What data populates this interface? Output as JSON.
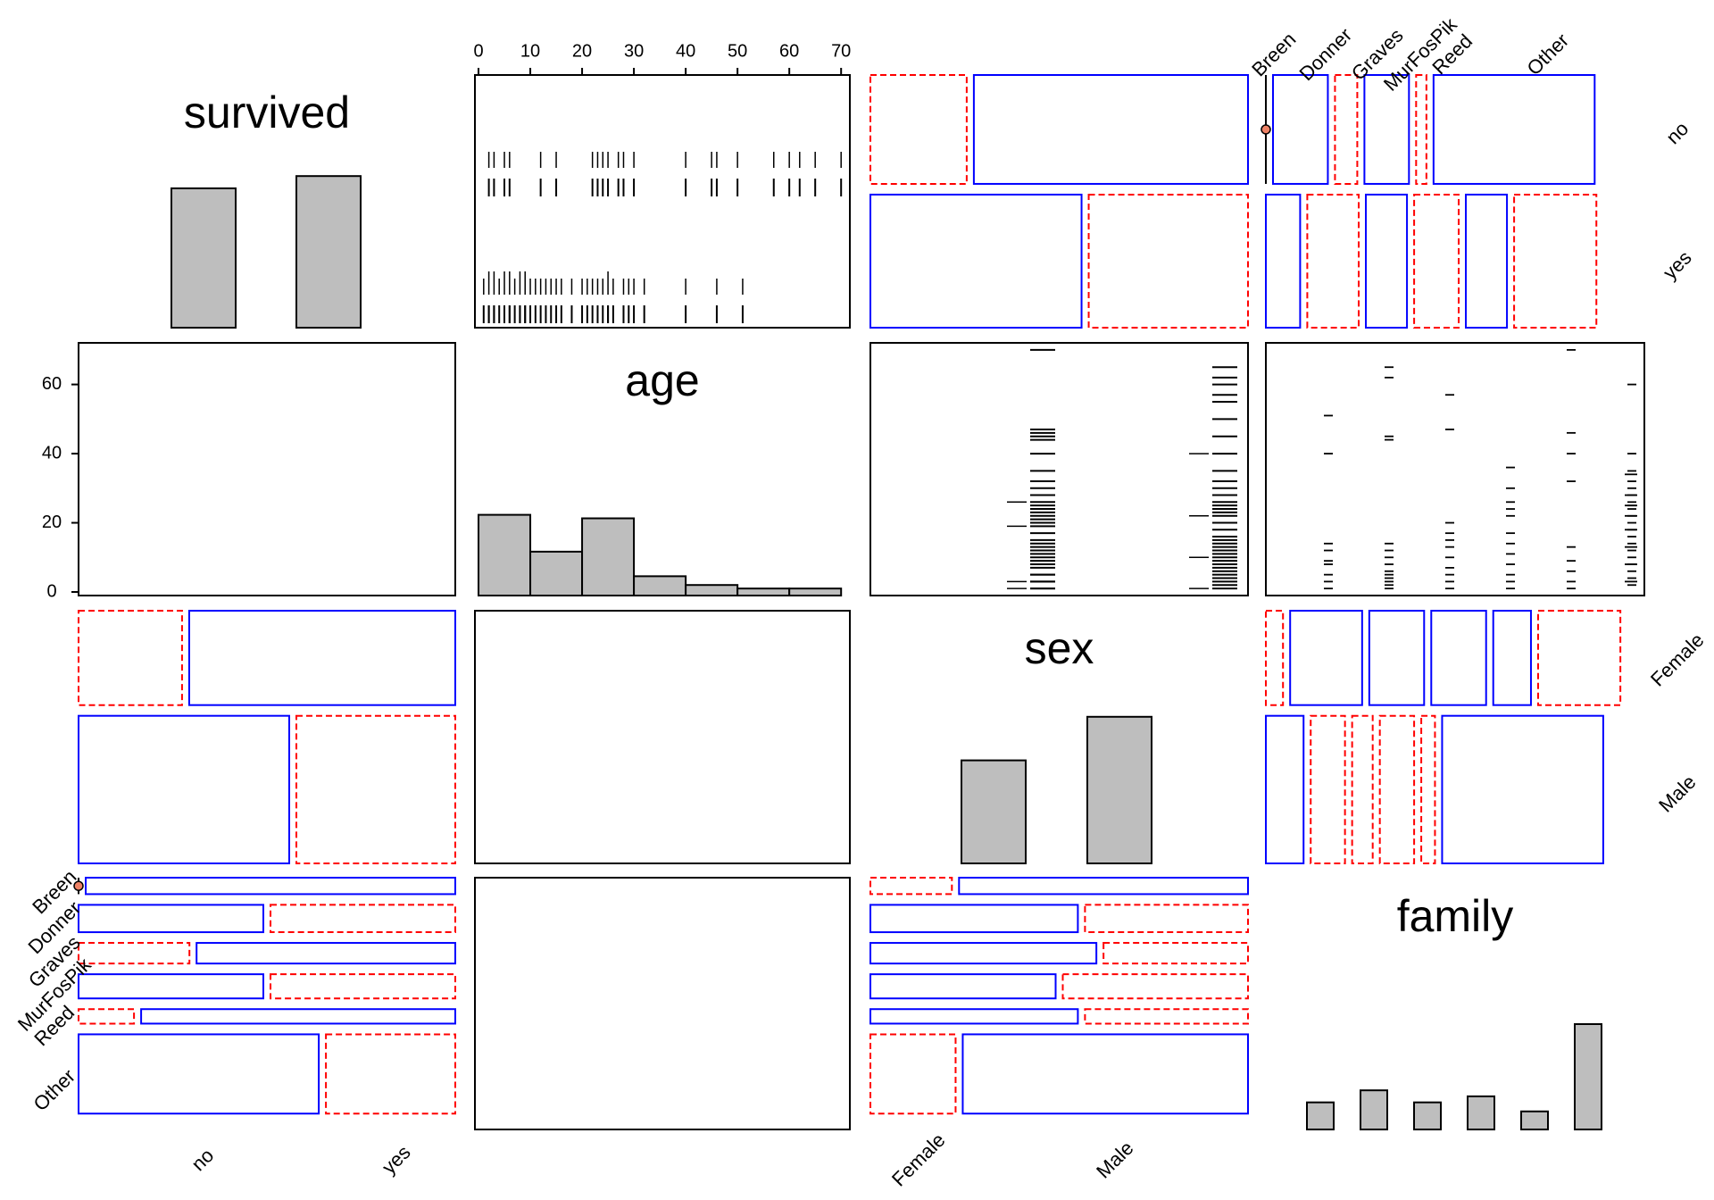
{
  "chart_data": {
    "type": "pairs",
    "colors": {
      "positive": "#0000ff",
      "negative": "#ff0000",
      "bar_fill": "#bebebe",
      "stroke": "#000000",
      "point": "#ee8266"
    },
    "variables": [
      "survived",
      "age",
      "sex",
      "family"
    ],
    "levels": {
      "survived": [
        "no",
        "yes"
      ],
      "sex": [
        "Female",
        "Male"
      ],
      "family": [
        "Breen",
        "Donner",
        "Graves",
        "MurFosPik",
        "Reed",
        "Other"
      ]
    },
    "age_axis": {
      "ticks": [
        0,
        10,
        20,
        30,
        40,
        50,
        60,
        70
      ],
      "left_ticks": [
        0,
        20,
        40,
        60
      ],
      "range": [
        0,
        71
      ]
    },
    "diagonal": {
      "survived_counts": [
        42,
        48
      ],
      "survived_ylim": [
        0,
        60
      ],
      "age_hist": {
        "breaks": [
          0,
          10,
          20,
          30,
          40,
          50,
          60,
          70
        ],
        "counts": [
          23,
          12.5,
          22,
          5.5,
          3,
          2,
          2
        ],
        "ylim": [
          0,
          72
        ]
      },
      "sex_counts": [
        35,
        55
      ],
      "sex_ylim": [
        0,
        90
      ],
      "family_counts": [
        9,
        13,
        9,
        11,
        6,
        35
      ],
      "family_ylim": [
        0,
        105
      ]
    },
    "mosaics": {
      "survived_sex": {
        "note": "rows = survived (no, yes); cols = sex (Female, Male)",
        "row_props": [
          0.45,
          0.55
        ],
        "cells": [
          [
            0.26,
            0.74
          ],
          [
            0.57,
            0.43
          ]
        ],
        "signs": [
          [
            "neg",
            "pos"
          ],
          [
            "pos",
            "neg"
          ]
        ]
      },
      "survived_family": {
        "note": "rows = survived (no, yes); cols = family",
        "row_props": [
          0.45,
          0.55
        ],
        "col_props": [
          0.0,
          0.16,
          0.065,
          0.13,
          0.03,
          0.47
        ],
        "cells": [
          [
            0.0,
            0.16,
            0.065,
            0.13,
            0.03,
            0.47
          ],
          [
            0.1,
            0.15,
            0.12,
            0.13,
            0.12,
            0.24
          ]
        ],
        "signs": [
          [
            "pos",
            "pos",
            "neg",
            "pos",
            "neg",
            "pos"
          ],
          [
            "pos",
            "neg",
            "pos",
            "neg",
            "pos",
            "neg"
          ]
        ]
      },
      "sex_family": {
        "note": "rows = sex (Female, Male); cols = family",
        "row_props": [
          0.39,
          0.61
        ],
        "cells": [
          [
            0.05,
            0.21,
            0.16,
            0.16,
            0.11,
            0.24
          ],
          [
            0.11,
            0.1,
            0.06,
            0.1,
            0.04,
            0.47
          ]
        ],
        "signs": [
          [
            "neg",
            "pos",
            "pos",
            "pos",
            "pos",
            "neg"
          ],
          [
            "pos",
            "neg",
            "neg",
            "neg",
            "neg",
            "pos"
          ]
        ]
      },
      "sex_survived": {
        "note": "rows = sex; cols = survived",
        "row_props": [
          0.39,
          0.61
        ],
        "cells": [
          [
            0.28,
            0.72
          ],
          [
            0.57,
            0.43
          ]
        ],
        "signs": [
          [
            "neg",
            "pos"
          ],
          [
            "pos",
            "neg"
          ]
        ]
      },
      "family_survived": {
        "note": "rows = family; cols = survived",
        "row_props": [
          0.083,
          0.138,
          0.104,
          0.122,
          0.073,
          0.4
        ],
        "cells": [
          [
            0.0,
            1.0
          ],
          [
            0.5,
            0.5
          ],
          [
            0.3,
            0.7
          ],
          [
            0.5,
            0.5
          ],
          [
            0.15,
            0.85
          ],
          [
            0.65,
            0.35
          ]
        ],
        "signs": [
          [
            "pos",
            "pos"
          ],
          [
            "pos",
            "neg"
          ],
          [
            "neg",
            "pos"
          ],
          [
            "pos",
            "neg"
          ],
          [
            "neg",
            "pos"
          ],
          [
            "pos",
            "neg"
          ]
        ]
      },
      "family_sex": {
        "note": "rows = family; cols = sex",
        "row_props": [
          0.083,
          0.138,
          0.104,
          0.122,
          0.073,
          0.4
        ],
        "cells": [
          [
            0.22,
            0.78
          ],
          [
            0.56,
            0.44
          ],
          [
            0.61,
            0.39
          ],
          [
            0.5,
            0.5
          ],
          [
            0.56,
            0.44
          ],
          [
            0.23,
            0.77
          ]
        ],
        "signs": [
          [
            "neg",
            "pos"
          ],
          [
            "pos",
            "neg"
          ],
          [
            "pos",
            "neg"
          ],
          [
            "pos",
            "neg"
          ],
          [
            "pos",
            "neg"
          ],
          [
            "neg",
            "pos"
          ]
        ]
      }
    },
    "barcodes": {
      "survived_no": [
        2,
        3,
        5,
        6,
        12,
        15,
        22,
        23,
        24,
        25,
        27,
        28,
        30,
        40,
        45,
        46,
        50,
        57,
        60,
        62,
        65,
        70
      ],
      "survived_yes": [
        1,
        2,
        2,
        3,
        3,
        4,
        5,
        5,
        6,
        6,
        7,
        8,
        8,
        9,
        9,
        10,
        11,
        12,
        13,
        14,
        15,
        16,
        18,
        20,
        21,
        22,
        23,
        24,
        25,
        25,
        26,
        28,
        29,
        30,
        32,
        40,
        46,
        51
      ],
      "sex_female": [
        1,
        3,
        5,
        7,
        9,
        11,
        13,
        15,
        17,
        19,
        21,
        23,
        25,
        28,
        32,
        45,
        70,
        1,
        3,
        5,
        8,
        10,
        12,
        14,
        20,
        22,
        24,
        26,
        28,
        30,
        35,
        40,
        44,
        46,
        47
      ],
      "sex_male": [
        1,
        2,
        3,
        4,
        5,
        6,
        7,
        8,
        9,
        10,
        11,
        12,
        13,
        14,
        15,
        16,
        18,
        20,
        22,
        23,
        24,
        25,
        26,
        28,
        30,
        32,
        35,
        40,
        45,
        50,
        55,
        57,
        60,
        62,
        65
      ],
      "family_ages": [
        [
          1,
          3,
          5,
          8,
          9,
          12,
          14,
          40,
          51
        ],
        [
          1,
          2,
          3,
          4,
          5,
          6,
          8,
          10,
          12,
          14,
          44,
          45,
          62,
          65
        ],
        [
          1,
          3,
          5,
          7,
          10,
          13,
          15,
          17,
          20,
          47,
          57
        ],
        [
          1,
          3,
          5,
          8,
          11,
          14,
          17,
          22,
          24,
          26,
          30,
          36
        ],
        [
          1,
          3,
          6,
          9,
          13,
          32,
          40,
          46,
          70
        ],
        [
          2,
          4,
          6,
          8,
          10,
          12,
          14,
          16,
          18,
          20,
          22,
          24,
          25,
          26,
          28,
          30,
          32,
          35,
          40,
          60
        ]
      ],
      "family_ages_extra": [
        3,
        8,
        13,
        18,
        22,
        25,
        28,
        34
      ]
    }
  }
}
